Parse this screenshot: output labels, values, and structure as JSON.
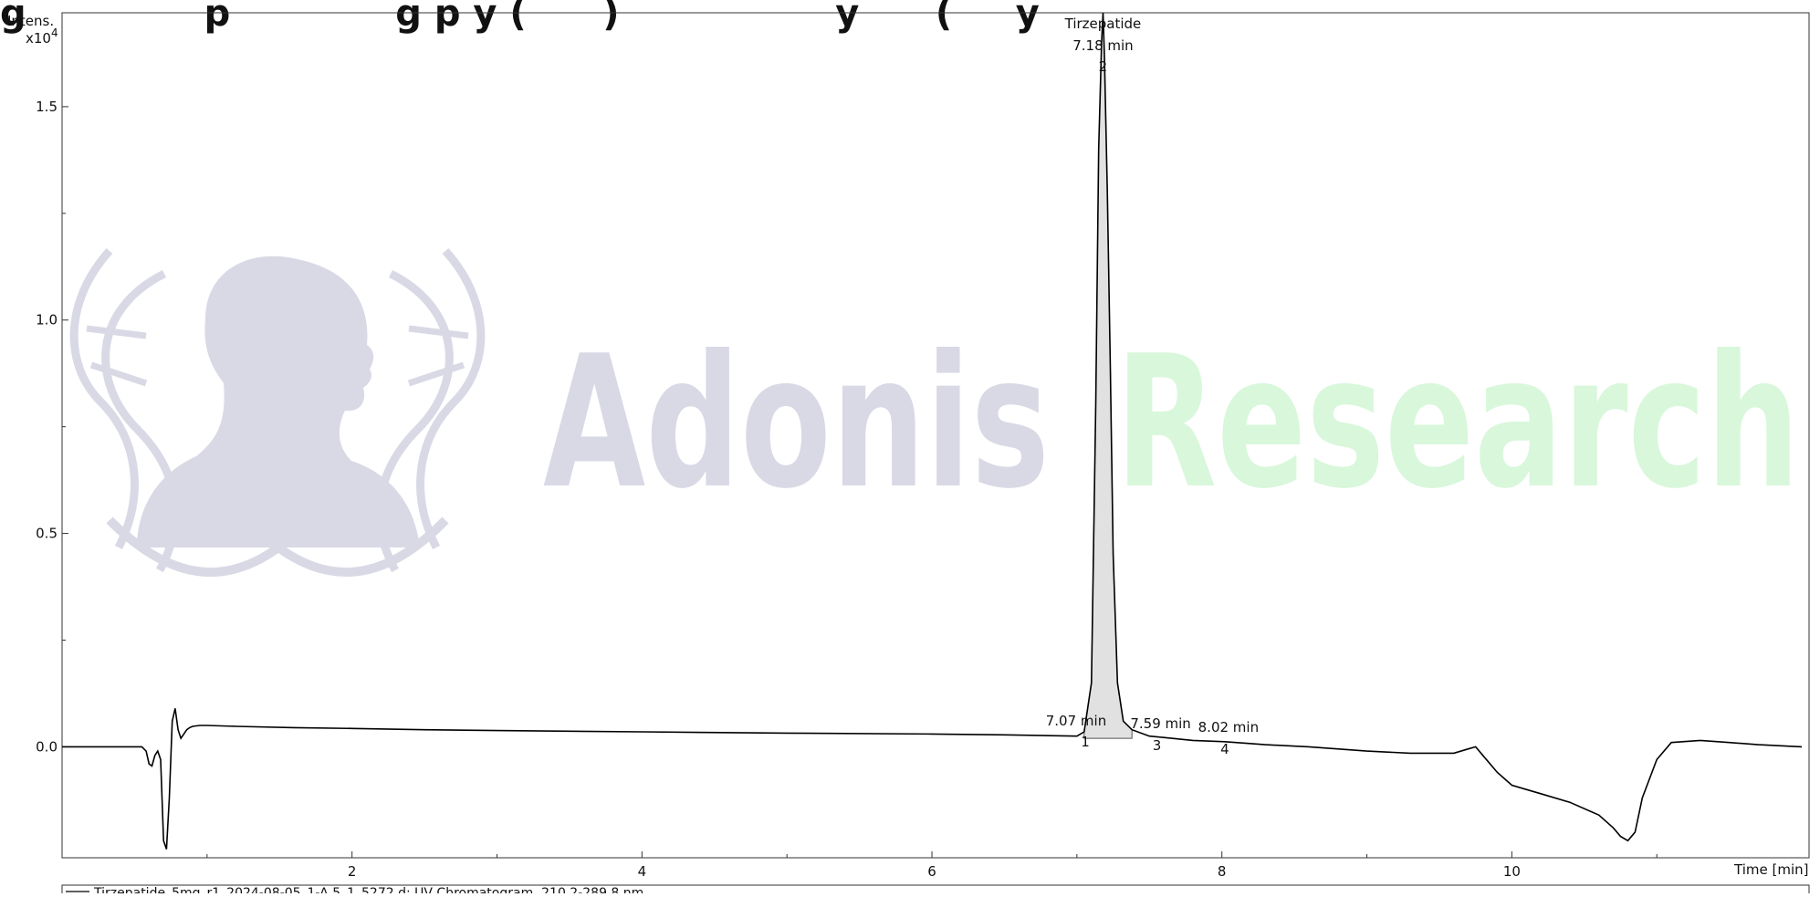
{
  "figure": {
    "heading_visible_fragment": "g              p             g p y (      )                 y      (     y"
  },
  "chart_data": {
    "type": "line",
    "ylabel": "Intens.",
    "yunit": "x10",
    "yunit_exponent": "4",
    "xlabel": "Time [min]",
    "xlim": [
      0.0,
      12.05
    ],
    "ylim": [
      -0.26,
      1.72
    ],
    "x_ticks": [
      2,
      4,
      6,
      8,
      10
    ],
    "x_tick_labels": [
      "2",
      "4",
      "6",
      "8",
      "10"
    ],
    "y_ticks": [
      0.0,
      0.5,
      1.0,
      1.5
    ],
    "y_tick_labels": [
      "0.0",
      "0.5",
      "1.0",
      "1.5"
    ],
    "legend": {
      "placement": "bottom",
      "entry": "Tirzepatide_5mg_r1_2024-08-05_1-A,5_1_5272.d: UV Chromatogram, 210.2-289.8 nm"
    },
    "series": [
      {
        "x": [
          0.0,
          0.3,
          0.5,
          0.55,
          0.58,
          0.6,
          0.62,
          0.64,
          0.66,
          0.68,
          0.7,
          0.72,
          0.74,
          0.76,
          0.78,
          0.8,
          0.82,
          0.84,
          0.86,
          0.88,
          0.9,
          0.95,
          1.0,
          1.2,
          1.6,
          2.0,
          2.5,
          3.0,
          4.0,
          5.0,
          6.0,
          6.5,
          7.0,
          7.05,
          7.1,
          7.13,
          7.15,
          7.17,
          7.18,
          7.19,
          7.21,
          7.23,
          7.25,
          7.28,
          7.32,
          7.38,
          7.5,
          7.59,
          7.8,
          8.02,
          8.3,
          8.6,
          9.0,
          9.3,
          9.6,
          9.7,
          9.75,
          9.8,
          9.9,
          10.0,
          10.1,
          10.2,
          10.4,
          10.6,
          10.7,
          10.75,
          10.8,
          10.85,
          10.9,
          11.0,
          11.1,
          11.3,
          11.5,
          11.7,
          12.0
        ],
        "y": [
          0.0,
          0.0,
          0.0,
          0.0,
          -0.01,
          -0.04,
          -0.045,
          -0.02,
          -0.01,
          -0.03,
          -0.22,
          -0.24,
          -0.12,
          0.06,
          0.09,
          0.04,
          0.02,
          0.03,
          0.04,
          0.045,
          0.048,
          0.05,
          0.05,
          0.048,
          0.045,
          0.043,
          0.04,
          0.038,
          0.035,
          0.032,
          0.03,
          0.028,
          0.025,
          0.035,
          0.15,
          0.8,
          1.4,
          1.65,
          1.72,
          1.62,
          1.3,
          0.9,
          0.45,
          0.15,
          0.06,
          0.04,
          0.025,
          0.022,
          0.015,
          0.012,
          0.005,
          0.0,
          -0.01,
          -0.015,
          -0.015,
          -0.005,
          0.0,
          -0.02,
          -0.06,
          -0.09,
          -0.1,
          -0.11,
          -0.13,
          -0.16,
          -0.19,
          -0.21,
          -0.22,
          -0.2,
          -0.12,
          -0.03,
          0.01,
          0.015,
          0.01,
          0.005,
          0.0
        ]
      }
    ],
    "peaks": [
      {
        "number": "1",
        "time": 7.07,
        "label": "7.07 min"
      },
      {
        "number": "2",
        "time": 7.18,
        "label": "7.18 min",
        "name": "Tirzepatide"
      },
      {
        "number": "3",
        "time": 7.59,
        "label": "7.59 min"
      },
      {
        "number": "4",
        "time": 8.02,
        "label": "8.02 min"
      }
    ],
    "shaded_peak": {
      "from": 7.05,
      "to": 7.38,
      "baseline": 0.02
    },
    "colors": {
      "trace": "#000000",
      "peak_fill": "#e1e1e1",
      "axis": "#333333"
    }
  },
  "watermark": {
    "word1": "Adonis",
    "word2": "Research",
    "color1": "#d9d9e6",
    "color2": "#d9f7db"
  }
}
